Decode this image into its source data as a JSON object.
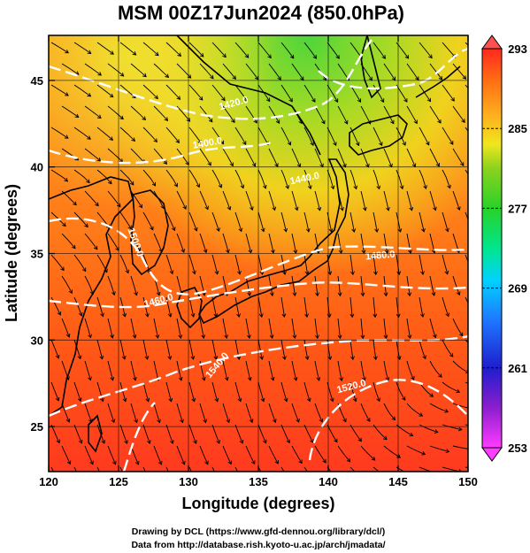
{
  "chart_data": {
    "type": "heatmap",
    "title": "MSM 00Z17Jun2024 (850.0hPa)",
    "xlabel": "Longitude (degrees)",
    "ylabel": "Latitude  (degrees)",
    "xlim": [
      120,
      150
    ],
    "ylim": [
      22.4,
      47.6
    ],
    "x_ticks": [
      "120",
      "125",
      "130",
      "135",
      "140",
      "145",
      "150"
    ],
    "y_ticks": [
      "25",
      "30",
      "35",
      "40",
      "45"
    ],
    "grid": true,
    "colorbar": {
      "range": [
        253,
        293
      ],
      "ticks": [
        "293",
        "285",
        "277",
        "269",
        "261",
        "253"
      ],
      "colors": [
        "#ff3cff",
        "#8c1ecd",
        "#1e1ecd",
        "#1e78ff",
        "#00d2ff",
        "#00e68c",
        "#28d228",
        "#8cd21e",
        "#f0e61e",
        "#ffaa1e",
        "#ff6e14",
        "#ff281e"
      ]
    },
    "contours": [
      {
        "label": "1400.0"
      },
      {
        "label": "1420.0"
      },
      {
        "label": "1440.0"
      },
      {
        "label": "1460.0"
      },
      {
        "label": "1480.0"
      },
      {
        "label": "1500.0"
      },
      {
        "label": "1520.0"
      },
      {
        "label": "1540.0"
      }
    ],
    "footer": [
      "Drawing by DCL (https://www.gfd-dennou.org/library/dcl/)",
      "Data from http://database.rish.kyoto-u.ac.jp/arch/jmadata/"
    ]
  }
}
